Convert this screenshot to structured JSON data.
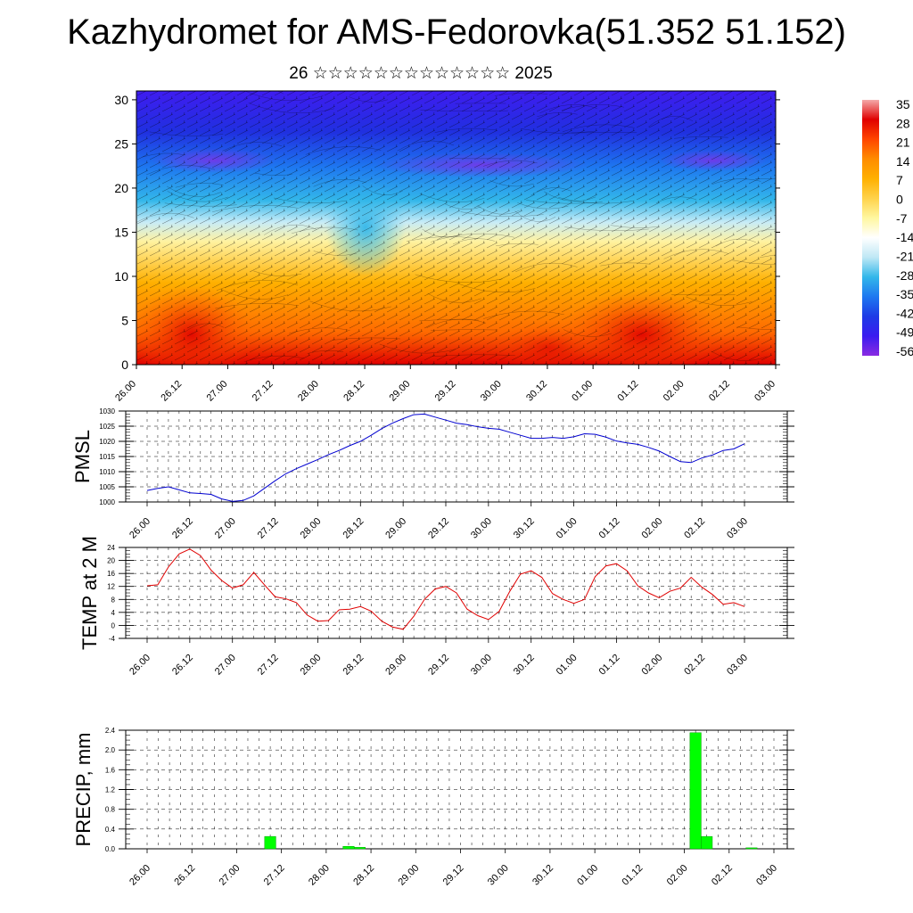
{
  "header": {
    "title": "Kazhydromet for AMS-Fedorovka(51.352 51.152)",
    "subtitle": "26 ☆☆☆☆☆☆☆☆☆☆☆☆☆ 2025"
  },
  "time_ticks": [
    "26.00",
    "26.12",
    "27.00",
    "27.12",
    "28.00",
    "28.12",
    "29.00",
    "29.12",
    "30.00",
    "30.12",
    "01.00",
    "01.12",
    "02.00",
    "02.12",
    "03.00"
  ],
  "colors": {
    "pmsl_line": "#0000d0",
    "temp_line": "#e00000",
    "precip_bar": "#00ff00",
    "colormap": [
      "#f4a9a9",
      "#e00000",
      "#ff4500",
      "#ff8c00",
      "#ffb000",
      "#ffd24a",
      "#fff7a0",
      "#ffffff",
      "#bfe8f5",
      "#33b7ea",
      "#1e78f0",
      "#1e3be6",
      "#3a1cf0",
      "#8a2be2"
    ]
  },
  "chart_data": [
    {
      "type": "heatmap",
      "description_free": true,
      "y_ticks": [
        0,
        5,
        10,
        15,
        20,
        25,
        30
      ],
      "ylim": [
        0,
        31
      ],
      "colorbar": {
        "labels": [
          "35",
          "28",
          "21",
          "14",
          "7",
          "0",
          "-7",
          "-14",
          "-21",
          "-28",
          "-35",
          "-42",
          "-49",
          "-56"
        ],
        "range": [
          -56,
          35
        ]
      }
    },
    {
      "type": "line",
      "ylabel": "PMSL",
      "ylim": [
        1000,
        1030
      ],
      "y_ticks": [
        1000,
        1005,
        1010,
        1015,
        1020,
        1025,
        1030
      ],
      "x": [
        0,
        1,
        2,
        3,
        4,
        5,
        6,
        7,
        8,
        9,
        10,
        11,
        12,
        13,
        14,
        15,
        16,
        17,
        18,
        19,
        20,
        21,
        22,
        23,
        24,
        25,
        26,
        27,
        28,
        29,
        30,
        31,
        32,
        33,
        34,
        35,
        36,
        37,
        38,
        39,
        40,
        41,
        42,
        43,
        44,
        45,
        46,
        47,
        48,
        49,
        50,
        51,
        52,
        53,
        54,
        55,
        56
      ],
      "values": [
        1003.8,
        1004.5,
        1005.0,
        1004.0,
        1003.0,
        1002.8,
        1002.5,
        1001.0,
        1000.2,
        1000.5,
        1002.0,
        1004.5,
        1007.0,
        1009.3,
        1011.0,
        1012.5,
        1014.0,
        1015.6,
        1017.0,
        1018.6,
        1020.0,
        1022.0,
        1024.2,
        1026.0,
        1027.5,
        1028.8,
        1029.0,
        1028.0,
        1027.0,
        1026.0,
        1025.5,
        1024.8,
        1024.3,
        1024.0,
        1023.0,
        1022.0,
        1021.0,
        1021.0,
        1021.3,
        1021.0,
        1021.5,
        1022.5,
        1022.3,
        1021.4,
        1020.1,
        1019.5,
        1019.0,
        1018.0,
        1016.8,
        1015.0,
        1013.3,
        1013.0,
        1014.5,
        1015.5,
        1017.0,
        1017.5,
        1019.2
      ]
    },
    {
      "type": "line",
      "ylabel": "TEMP at 2 M",
      "ylim": [
        -4,
        24
      ],
      "y_ticks": [
        -4,
        0,
        4,
        8,
        12,
        16,
        20,
        24
      ],
      "x": [
        0,
        1,
        2,
        3,
        4,
        5,
        6,
        7,
        8,
        9,
        10,
        11,
        12,
        13,
        14,
        15,
        16,
        17,
        18,
        19,
        20,
        21,
        22,
        23,
        24,
        25,
        26,
        27,
        28,
        29,
        30,
        31,
        32,
        33,
        34,
        35,
        36,
        37,
        38,
        39,
        40,
        41,
        42,
        43,
        44,
        45,
        46,
        47,
        48,
        49,
        50,
        51,
        52,
        53,
        54,
        55,
        56
      ],
      "values": [
        12.2,
        12.5,
        18.0,
        22.0,
        23.5,
        21.5,
        17.0,
        13.8,
        11.5,
        12.5,
        16.3,
        12.5,
        8.8,
        8.2,
        7.0,
        3.2,
        1.3,
        1.5,
        4.8,
        5.0,
        5.8,
        4.4,
        1.3,
        -0.5,
        -1.2,
        2.8,
        8.0,
        11.2,
        12.0,
        10.0,
        5.0,
        3.0,
        1.8,
        4.3,
        10.5,
        15.8,
        16.8,
        14.8,
        9.8,
        8.0,
        6.8,
        8.0,
        15.0,
        18.3,
        19.0,
        16.8,
        12.2,
        10.0,
        8.5,
        10.5,
        11.5,
        14.8,
        11.8,
        9.5,
        6.5,
        7.0,
        5.8
      ]
    },
    {
      "type": "bar",
      "ylabel": "PRECIP, mm",
      "ylim": [
        0,
        2.4
      ],
      "y_ticks": [
        "0.0",
        "0.4",
        "0.8",
        "1.2",
        "1.6",
        "2.0",
        "2.4"
      ],
      "x": [
        11,
        18,
        19,
        49,
        50,
        54
      ],
      "values": [
        0.25,
        0.05,
        0.03,
        2.35,
        0.25,
        0.02
      ]
    }
  ]
}
